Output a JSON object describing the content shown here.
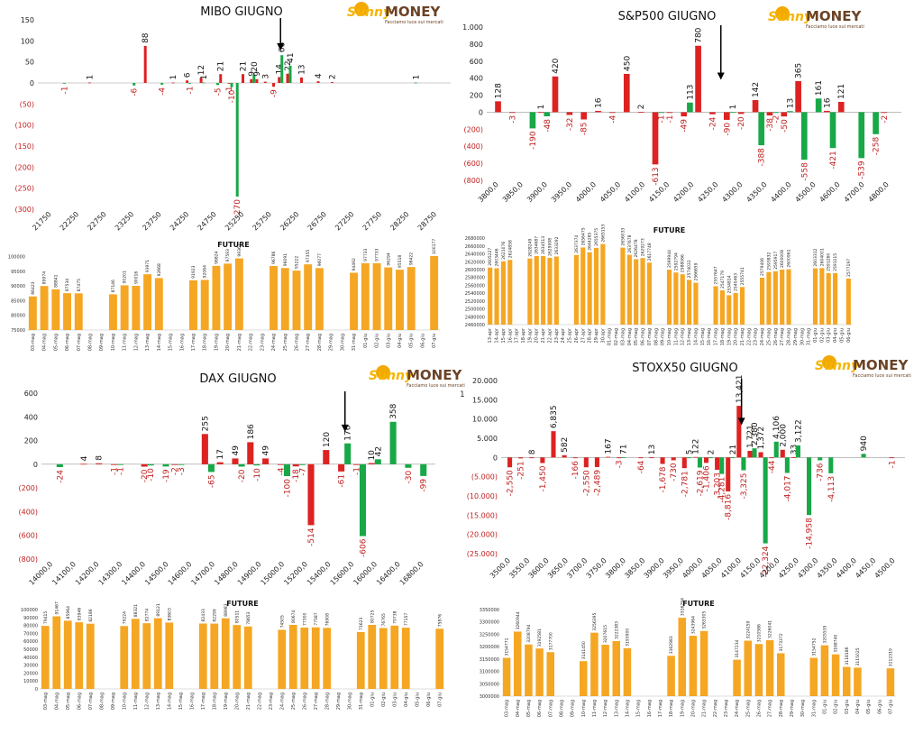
{
  "brand": {
    "name_sunny": "Sunny",
    "name_money": "MONEY",
    "tagline": "Facciamo luce sui mercati",
    "sun_color": "#f2a900",
    "money_color": "#6b4226",
    "sunny_color": "#f5b400"
  },
  "colors": {
    "call": "#dd2222",
    "put": "#18a848",
    "future": "#f5a623",
    "arrow": "#000000",
    "axis_neg": "#c02020"
  },
  "stray_mark": "1",
  "panels": [
    {
      "title": "MIBO GIUGNO",
      "ylim": [
        -300,
        150
      ],
      "yticks": [
        150,
        100,
        50,
        0,
        -50,
        -100,
        -150,
        -200,
        -250,
        -300
      ],
      "tick_labels": [
        "21750",
        "22250",
        "22750",
        "23250",
        "23750",
        "24250",
        "24750",
        "25250",
        "25750",
        "26250",
        "26750",
        "27250",
        "27750",
        "28250",
        "28750"
      ],
      "arrow_at": 25900,
      "x_min": 21550,
      "x_max": 28950,
      "pairs": [
        {
          "x": 22000,
          "call": null,
          "put": -1
        },
        {
          "x": 22500,
          "call": 1,
          "put": null
        },
        {
          "x": 23250,
          "call": null,
          "put": -6
        },
        {
          "x": 23500,
          "call": 88,
          "put": null
        },
        {
          "x": 23750,
          "call": null,
          "put": -4
        },
        {
          "x": 24000,
          "call": 1,
          "put": null
        },
        {
          "x": 24250,
          "call": 6,
          "put": -1
        },
        {
          "x": 24500,
          "call": 12,
          "put": 1
        },
        {
          "x": 24750,
          "call": null,
          "put": -5
        },
        {
          "x": 24850,
          "call": 21,
          "put": null
        },
        {
          "x": 25000,
          "call": -1,
          "put": -10
        },
        {
          "x": 25100,
          "call": null,
          "put": -270
        },
        {
          "x": 25250,
          "call": 21,
          "put": null
        },
        {
          "x": 25400,
          "call": 9,
          "put": 20
        },
        {
          "x": 25500,
          "call": 9,
          "put": null
        },
        {
          "x": 25650,
          "call": 3,
          "put": null
        },
        {
          "x": 25800,
          "call": -9,
          "put": null
        },
        {
          "x": 25900,
          "call": 14,
          "put": 66
        },
        {
          "x": 26050,
          "call": 22,
          "put": 41
        },
        {
          "x": 26300,
          "call": 13,
          "put": null
        },
        {
          "x": 26600,
          "call": 4,
          "put": null
        },
        {
          "x": 26850,
          "call": 2,
          "put": null
        },
        {
          "x": 28300,
          "call": null,
          "put": 1
        }
      ],
      "future": {
        "title": "FUTURE",
        "ylim": [
          75000,
          102000
        ],
        "yticks": [
          100000,
          95000,
          90000,
          85000,
          80000,
          75000
        ],
        "dates": [
          "03-mag",
          "04-mag",
          "05-mag",
          "06-mag",
          "07-mag",
          "08-mag",
          "09-mag",
          "10-mag",
          "11-mag",
          "12-mag",
          "13-mag",
          "14-mag",
          "15-mag",
          "16-mag",
          "17-mag",
          "18-mag",
          "19-mag",
          "20-mag",
          "21-mag",
          "22-mag",
          "23-mag",
          "24-mag",
          "25-mag",
          "26-mag",
          "27-mag",
          "28-mag",
          "29-mag",
          "30-mag",
          "31-mag",
          "01-giu",
          "02-giu",
          "03-giu",
          "04-giu",
          "05-giu",
          "06-giu",
          "07-giu"
        ],
        "values": [
          86423,
          89974,
          88841,
          87534,
          87475,
          null,
          null,
          87146,
          90201,
          90016,
          93971,
          92668,
          null,
          null,
          91923,
          92064,
          96824,
          97593,
          99361,
          null,
          null,
          96786,
          96091,
          95222,
          97355,
          96077,
          null,
          null,
          94492,
          97733,
          97733,
          96294,
          95518,
          96422,
          null,
          100177
        ]
      }
    },
    {
      "title": "S&P500 GIUGNO",
      "ylim": [
        -800,
        1000
      ],
      "yticks": [
        1000,
        800,
        600,
        400,
        200,
        0,
        -200,
        -400,
        -600,
        -800
      ],
      "tick_labels": [
        "3800,0",
        "3850,0",
        "3900,0",
        "3950,0",
        "4000,0",
        "4050,0",
        "4100,0",
        "4150,0",
        "4200,0",
        "4250,0",
        "4300,0",
        "4350,0",
        "4400,0",
        "4500,0",
        "4600,0",
        "4700,0",
        "4800,0"
      ],
      "arrow_at": 4255,
      "pairs": [
        {
          "x": 1,
          "call": 128,
          "put": null
        },
        {
          "x": 2,
          "call": -3,
          "put": null
        },
        {
          "x": 3,
          "call": null,
          "put": -190
        },
        {
          "x": 4,
          "call": 1,
          "put": -48
        },
        {
          "x": 5,
          "call": 420,
          "put": null
        },
        {
          "x": 6,
          "call": -32,
          "put": null
        },
        {
          "x": 7,
          "call": -85,
          "put": null
        },
        {
          "x": 8,
          "call": 16,
          "put": null
        },
        {
          "x": 9,
          "call": -4,
          "put": null
        },
        {
          "x": 10,
          "call": 450,
          "put": null
        },
        {
          "x": 11,
          "call": 2,
          "put": null
        },
        {
          "x": 12,
          "call": -613,
          "put": -1
        },
        {
          "x": 13,
          "call": -1,
          "put": null
        },
        {
          "x": 14,
          "call": -49,
          "put": 113
        },
        {
          "x": 15,
          "call": 780,
          "put": null
        },
        {
          "x": 16,
          "call": -24,
          "put": null
        },
        {
          "x": 17,
          "call": -90,
          "put": 1
        },
        {
          "x": 18,
          "call": -20,
          "put": null
        },
        {
          "x": 19,
          "call": 142,
          "put": -388
        },
        {
          "x": 20,
          "call": -38,
          "put": -2
        },
        {
          "x": 21,
          "call": -50,
          "put": 13
        },
        {
          "x": 22,
          "call": 365,
          "put": -558
        },
        {
          "x": 23,
          "call": null,
          "put": 161
        },
        {
          "x": 24,
          "call": 16,
          "put": -421
        },
        {
          "x": 25,
          "call": 121,
          "put": null
        },
        {
          "x": 26,
          "call": null,
          "put": -539
        },
        {
          "x": 27,
          "call": null,
          "put": -258
        },
        {
          "x": 28,
          "call": -2,
          "put": null
        }
      ],
      "future": {
        "title": "FUTURE",
        "ylim": [
          2460000,
          2685000
        ],
        "yticks": [
          2680000,
          2660000,
          2640000,
          2620000,
          2600000,
          2580000,
          2560000,
          2540000,
          2520000,
          2500000,
          2480000,
          2460000
        ],
        "dates": [
          "13-apr",
          "14-apr",
          "15-apr",
          "16-apr",
          "17-apr",
          "18-apr",
          "19-apr",
          "20-apr",
          "21-apr",
          "22-apr",
          "23-apr",
          "24-apr",
          "25-apr",
          "26-apr",
          "27-apr",
          "28-apr",
          "29-apr",
          "30-apr",
          "01-mag",
          "02-mag",
          "03-mag",
          "04-mag",
          "05-mag",
          "06-mag",
          "07-mag",
          "08-mag",
          "09-mag",
          "10-mag",
          "11-mag",
          "12-mag",
          "13-mag",
          "14-mag",
          "15-mag",
          "16-mag",
          "17-mag",
          "18-mag",
          "19-mag",
          "20-mag",
          "21-mag",
          "22-mag",
          "23-mag",
          "24-mag",
          "25-mag",
          "26-mag",
          "27-mag",
          "28-mag",
          "29-mag",
          "30-mag",
          "31-mag",
          "01-giu",
          "02-giu",
          "03-giu",
          "04-giu",
          "05-giu",
          "06-giu"
        ],
        "values": [
          2605227,
          2603446,
          2621076,
          2624858,
          null,
          null,
          2628249,
          2634687,
          2634513,
          2629998,
          2633292,
          null,
          null,
          2637374,
          2656475,
          2644265,
          2655375,
          2665153,
          null,
          null,
          2656033,
          2637678,
          2626478,
          2629273,
          2617748,
          null,
          null,
          2599944,
          2592794,
          2588066,
          2574022,
          2566659,
          null,
          null,
          2557647,
          2547179,
          2534814,
          2540463,
          2555741,
          null,
          null,
          2579406,
          2593832,
          2595917,
          2600008,
          2600961,
          null,
          null,
          null,
          2603312,
          2604001,
          2591260,
          2591115,
          null,
          2577197
        ]
      }
    },
    {
      "title": "DAX GIUGNO",
      "ylim": [
        -800,
        600
      ],
      "yticks": [
        600,
        400,
        200,
        0,
        -200,
        -400,
        -600,
        -800
      ],
      "tick_labels": [
        "14000,0",
        "14100,0",
        "14200,0",
        "14300,0",
        "14400,0",
        "14500,0",
        "14600,0",
        "14700,0",
        "14800,0",
        "14900,0",
        "15000,0",
        "15200,0",
        "15400,0",
        "15600,0",
        "16000,0",
        "16400,0",
        "16800,0"
      ],
      "arrow_at": 15520,
      "pairs": [
        {
          "x": 1,
          "call": null,
          "put": -24
        },
        {
          "x": 3,
          "call": 4,
          "put": null
        },
        {
          "x": 4,
          "call": 8,
          "put": null
        },
        {
          "x": 5,
          "call": -1,
          "put": -1
        },
        {
          "x": 7,
          "call": -20,
          "put": -10
        },
        {
          "x": 8,
          "call": null,
          "put": -19
        },
        {
          "x": 9,
          "call": -2,
          "put": -3
        },
        {
          "x": 11,
          "call": 255,
          "put": -65
        },
        {
          "x": 12,
          "call": 17,
          "put": null
        },
        {
          "x": 13,
          "call": 49,
          "put": -20
        },
        {
          "x": 14,
          "call": 186,
          "put": -10
        },
        {
          "x": 15,
          "call": 49,
          "put": null
        },
        {
          "x": 16,
          "call": -4,
          "put": -100
        },
        {
          "x": 17,
          "call": -18,
          "put": -7
        },
        {
          "x": 18,
          "call": -514,
          "put": null
        },
        {
          "x": 19,
          "call": 120,
          "put": null
        },
        {
          "x": 20,
          "call": -61,
          "put": 176
        },
        {
          "x": 21,
          "call": -1,
          "put": -606
        },
        {
          "x": 22,
          "call": 10,
          "put": 42
        },
        {
          "x": 23,
          "call": null,
          "put": 358
        },
        {
          "x": 24,
          "call": null,
          "put": -30
        },
        {
          "x": 25,
          "call": null,
          "put": -99
        }
      ],
      "future": {
        "title": "FUTURE",
        "ylim": [
          0,
          100000
        ],
        "yticks": [
          100000,
          90000,
          80000,
          70000,
          60000,
          50000,
          40000,
          30000,
          20000,
          10000,
          0
        ],
        "dates": [
          "03-mag",
          "04-mag",
          "05-mag",
          "06-mag",
          "07-mag",
          "08-mag",
          "09-mag",
          "10-mag",
          "11-mag",
          "12-mag",
          "13-mag",
          "14-mag",
          "15-mag",
          "16-mag",
          "17-mag",
          "18-mag",
          "19-mag",
          "20-mag",
          "21-mag",
          "22-mag",
          "23-mag",
          "24-mag",
          "25-mag",
          "26-mag",
          "27-mag",
          "28-mag",
          "29-mag",
          "30-mag",
          "31-mag",
          "01-giu",
          "02-giu",
          "03-giu",
          "04-giu",
          "05-giu",
          "06-giu",
          "07-giu"
        ],
        "values": [
          79415,
          91467,
          85964,
          83946,
          82186,
          null,
          null,
          79224,
          88321,
          82774,
          89121,
          83603,
          null,
          null,
          82433,
          82299,
          88983,
          80511,
          78653,
          null,
          null,
          74505,
          80674,
          77300,
          77587,
          76908,
          null,
          null,
          71623,
          80725,
          76765,
          79738,
          77157,
          null,
          null,
          75876
        ]
      }
    },
    {
      "title": "STOXX50 GIUGNO",
      "ylim": [
        -25000,
        20000
      ],
      "yticks": [
        20000,
        15000,
        10000,
        5000,
        0,
        -5000,
        -10000,
        -15000,
        -20000,
        -25000
      ],
      "ytick_labels": [
        "20.000",
        "15.000",
        "10.000",
        "5.000",
        "0",
        "(5.000)",
        "(10.000)",
        "(15.000)",
        "(20.000)",
        "(25.000)"
      ],
      "tick_labels": [
        "3500,0",
        "3550,0",
        "3600,0",
        "3650,0",
        "3700,0",
        "3750,0",
        "3800,0",
        "3850,0",
        "3900,0",
        "3950,0",
        "4000,0",
        "4050,0",
        "4100,0",
        "4150,0",
        "4200,0",
        "4250,0",
        "4300,0",
        "4350,0",
        "4400,0",
        "4450,0",
        "4500,0"
      ],
      "arrow_at": 4100,
      "pairs": [
        {
          "x": 1,
          "call": -2550,
          "put": null
        },
        {
          "x": 2,
          "call": -251,
          "put": null
        },
        {
          "x": 3,
          "call": 8,
          "put": null
        },
        {
          "x": 4,
          "call": -1450,
          "put": null
        },
        {
          "x": 5,
          "call": 6835,
          "put": null
        },
        {
          "x": 6,
          "call": 582,
          "put": null
        },
        {
          "x": 7,
          "call": -166,
          "put": null
        },
        {
          "x": 8,
          "call": -2550,
          "put": null
        },
        {
          "x": 9,
          "call": -2489,
          "put": null
        },
        {
          "x": 10,
          "call": 167,
          "put": null
        },
        {
          "x": 11,
          "call": -3,
          "put": 71
        },
        {
          "x": 13,
          "call": -64,
          "put": null
        },
        {
          "x": 14,
          "call": 13,
          "put": null
        },
        {
          "x": 15,
          "call": -1678,
          "put": null
        },
        {
          "x": 16,
          "call": -730,
          "put": null
        },
        {
          "x": 17,
          "call": -2781,
          "put": 5
        },
        {
          "x": 18,
          "call": 122,
          "put": -2619
        },
        {
          "x": 19,
          "call": -1406,
          "put": 2
        },
        {
          "x": 20,
          "call": -3203,
          "put": -4281
        },
        {
          "x": 21,
          "call": -8816,
          "put": 21
        },
        {
          "x": 22,
          "call": 13421,
          "put": -3325
        },
        {
          "x": 23,
          "call": 1721,
          "put": 2380
        },
        {
          "x": 24,
          "call": 1372,
          "put": -22324
        },
        {
          "x": 25,
          "call": -44,
          "put": 4106
        },
        {
          "x": 26,
          "call": 2000,
          "put": -4017
        },
        {
          "x": 27,
          "call": 33,
          "put": 3122
        },
        {
          "x": 28,
          "call": null,
          "put": -14958
        },
        {
          "x": 29,
          "call": null,
          "put": -736
        },
        {
          "x": 30,
          "call": null,
          "put": -4113
        },
        {
          "x": 33,
          "call": null,
          "put": 940
        },
        {
          "x": 36,
          "call": -1,
          "put": null
        }
      ],
      "future": {
        "title": "FUTURE",
        "ylim": [
          3000000,
          3350000
        ],
        "yticks": [
          3350000,
          3300000,
          3250000,
          3200000,
          3150000,
          3100000,
          3050000,
          3000000
        ],
        "dates": [
          "03-mag",
          "04-mag",
          "05-mag",
          "06-mag",
          "07-mag",
          "08-mag",
          "09-mag",
          "10-mag",
          "11-mag",
          "12-mag",
          "13-mag",
          "14-mag",
          "15-mag",
          "16-mag",
          "17-mag",
          "18-mag",
          "19-mag",
          "20-mag",
          "21-mag",
          "22-mag",
          "23-mag",
          "24-mag",
          "25-mag",
          "26-mag",
          "27-mag",
          "28-mag",
          "29-mag",
          "30-mag",
          "31-mag",
          "01-giu",
          "02-giu",
          "03-giu",
          "04-giu",
          "05-giu",
          "06-giu",
          "07-giu"
        ],
        "values": [
          3154771,
          3260944,
          3208794,
          3192581,
          3177700,
          null,
          null,
          3141450,
          3256395,
          3207615,
          3222383,
          3193900,
          null,
          null,
          null,
          3162983,
          3316794,
          3243964,
          3263305,
          null,
          null,
          3147234,
          3224159,
          3210586,
          3226041,
          3173372,
          null,
          null,
          3154752,
          3205535,
          3168740,
          3118186,
          3115025,
          null,
          null,
          3112319
        ]
      }
    }
  ]
}
